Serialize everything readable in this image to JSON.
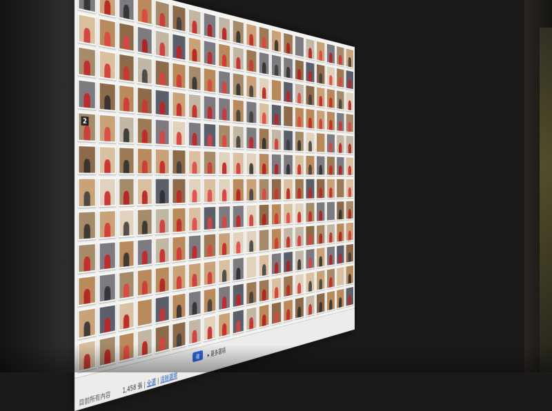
{
  "thumb_number_label": "2",
  "status_bar": {
    "left_label": "目前所有內容",
    "count_text": "1,458 張",
    "select_all": "全選",
    "clear_selection": "清除選擇",
    "ok_label": "確",
    "more_options": "▸ 更多選項"
  },
  "colors": {
    "screen_bg": "#f4f4f2",
    "thumb_border": "#ffffff",
    "shirt_red": "#c62020",
    "room_wood": "#b88a5c",
    "accent_blue": "#2b63d9",
    "link_blue": "#1f56b8"
  },
  "grid": {
    "columns": 20,
    "rows": 12
  }
}
